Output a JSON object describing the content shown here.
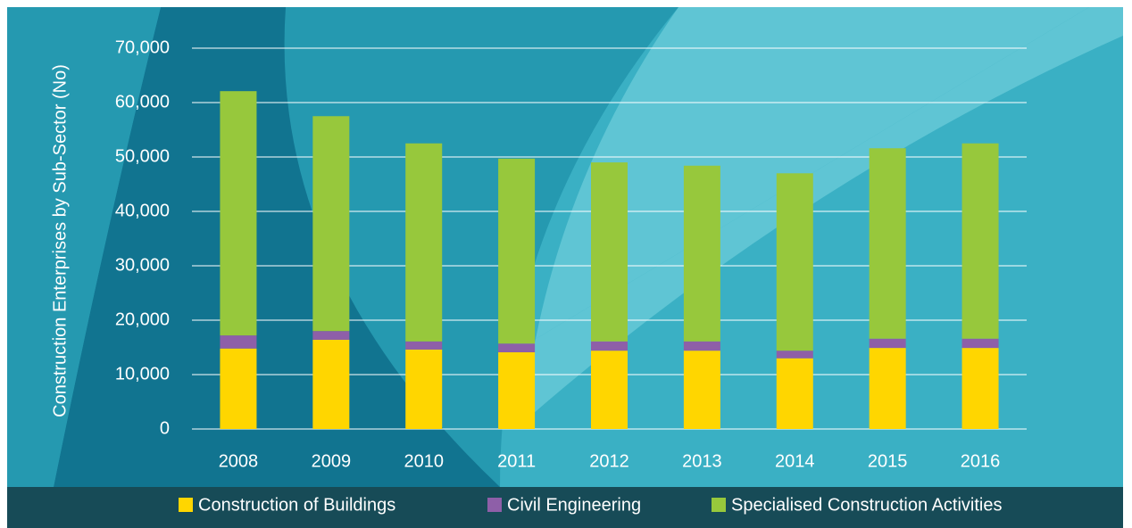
{
  "chart_data": {
    "type": "stacked_bar",
    "y_label": "Construction Enterprises by Sub-Sector (No)",
    "categories": [
      "2008",
      "2009",
      "2010",
      "2011",
      "2012",
      "2013",
      "2014",
      "2015",
      "2016"
    ],
    "series": [
      {
        "name": "Construction of Buildings",
        "color": "#ffd600",
        "values": [
          14800,
          16400,
          14600,
          14100,
          14400,
          14400,
          13000,
          14900,
          14900
        ]
      },
      {
        "name": "Civil Engineering",
        "color": "#8e5fa8",
        "values": [
          2400,
          1600,
          1500,
          1600,
          1700,
          1700,
          1400,
          1700,
          1700
        ]
      },
      {
        "name": "Specialised Construction Activities",
        "color": "#97c83c",
        "values": [
          44900,
          39500,
          36400,
          34000,
          32900,
          32300,
          32600,
          35000,
          35900
        ]
      }
    ],
    "ylim": [
      0,
      70000
    ],
    "yticks": [
      0,
      {
        "value": 10000,
        "label": "10,000"
      },
      {
        "value": 20000,
        "label": "20,000"
      },
      {
        "value": 30000,
        "label": "30,000"
      },
      {
        "value": 40000,
        "label": "40,000"
      },
      {
        "value": 50000,
        "label": "50,000"
      },
      {
        "value": 60000,
        "label": "60,000"
      },
      {
        "value": 70000,
        "label": "70,000"
      }
    ],
    "grid": true,
    "legend": "bottom"
  }
}
